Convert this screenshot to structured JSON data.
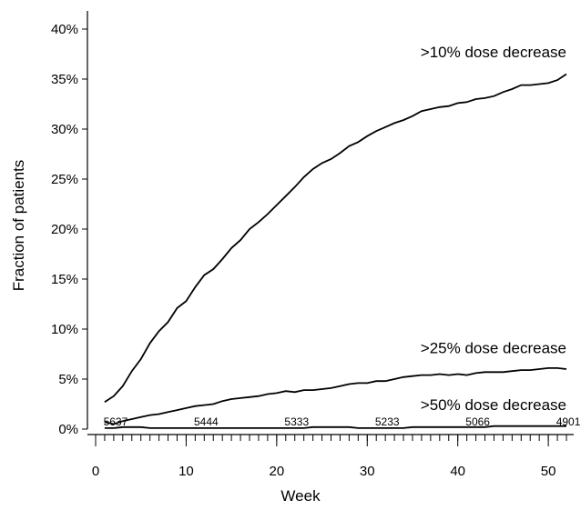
{
  "chart_data": {
    "type": "line",
    "xlabel": "Week",
    "ylabel": "Fraction of patients",
    "xlim": [
      0,
      52
    ],
    "ylim": [
      0,
      40
    ],
    "x_ticks": [
      0,
      10,
      20,
      30,
      40,
      50
    ],
    "y_ticks": [
      {
        "value": 0,
        "label": "0%"
      },
      {
        "value": 5,
        "label": "5%"
      },
      {
        "value": 10,
        "label": "10%"
      },
      {
        "value": 15,
        "label": "15%"
      },
      {
        "value": 20,
        "label": "20%"
      },
      {
        "value": 25,
        "label": "25%"
      },
      {
        "value": 30,
        "label": "30%"
      },
      {
        "value": 35,
        "label": "35%"
      },
      {
        "value": 40,
        "label": "40%"
      }
    ],
    "x": [
      1,
      2,
      3,
      4,
      5,
      6,
      7,
      8,
      9,
      10,
      11,
      12,
      13,
      14,
      15,
      16,
      17,
      18,
      19,
      20,
      21,
      22,
      23,
      24,
      25,
      26,
      27,
      28,
      29,
      30,
      31,
      32,
      33,
      34,
      35,
      36,
      37,
      38,
      39,
      40,
      41,
      42,
      43,
      44,
      45,
      46,
      47,
      48,
      49,
      50,
      51,
      52
    ],
    "series": [
      {
        "name": ">10% dose decrease",
        "values": [
          2.7,
          3.3,
          4.3,
          5.8,
          7.0,
          8.6,
          9.8,
          10.7,
          12.1,
          12.8,
          14.2,
          15.4,
          16.0,
          17.0,
          18.1,
          18.9,
          20.0,
          20.7,
          21.5,
          22.4,
          23.3,
          24.2,
          25.2,
          26.0,
          26.6,
          27.0,
          27.6,
          28.3,
          28.7,
          29.3,
          29.8,
          30.2,
          30.6,
          30.9,
          31.3,
          31.8,
          32.0,
          32.2,
          32.3,
          32.6,
          32.7,
          33.0,
          33.1,
          33.3,
          33.7,
          34.0,
          34.4,
          34.4,
          34.5,
          34.6,
          34.9,
          35.5
        ]
      },
      {
        "name": ">25% dose decrease",
        "values": [
          0.7,
          0.5,
          0.8,
          1.0,
          1.2,
          1.4,
          1.5,
          1.7,
          1.9,
          2.1,
          2.3,
          2.4,
          2.5,
          2.8,
          3.0,
          3.1,
          3.2,
          3.3,
          3.5,
          3.6,
          3.8,
          3.7,
          3.9,
          3.9,
          4.0,
          4.1,
          4.3,
          4.5,
          4.6,
          4.6,
          4.8,
          4.8,
          5.0,
          5.2,
          5.3,
          5.4,
          5.4,
          5.5,
          5.4,
          5.5,
          5.4,
          5.6,
          5.7,
          5.7,
          5.7,
          5.8,
          5.9,
          5.9,
          6.0,
          6.1,
          6.1,
          6.0
        ]
      },
      {
        "name": ">50% dose decrease",
        "values": [
          0.1,
          0.1,
          0.2,
          0.2,
          0.2,
          0.1,
          0.1,
          0.1,
          0.1,
          0.1,
          0.1,
          0.1,
          0.1,
          0.1,
          0.1,
          0.1,
          0.1,
          0.1,
          0.1,
          0.1,
          0.1,
          0.1,
          0.1,
          0.2,
          0.2,
          0.2,
          0.2,
          0.2,
          0.1,
          0.1,
          0.1,
          0.1,
          0.1,
          0.1,
          0.2,
          0.2,
          0.2,
          0.2,
          0.2,
          0.2,
          0.2,
          0.2,
          0.2,
          0.3,
          0.3,
          0.3,
          0.3,
          0.3,
          0.3,
          0.3,
          0.3,
          0.3
        ]
      }
    ],
    "series_labels": [
      {
        "text": ">10% dose decrease",
        "x": 52,
        "y": 37.2,
        "anchor": "end"
      },
      {
        "text": ">25% dose decrease",
        "x": 52,
        "y": 7.6,
        "anchor": "end"
      },
      {
        "text": ">50% dose decrease",
        "x": 52,
        "y": 1.9,
        "anchor": "end"
      }
    ],
    "patients_at_risk": [
      {
        "week": 1,
        "count": "5637"
      },
      {
        "week": 11,
        "count": "5444"
      },
      {
        "week": 21,
        "count": "5333"
      },
      {
        "week": 31,
        "count": "5233"
      },
      {
        "week": 41,
        "count": "5066"
      },
      {
        "week": 51,
        "count": "4901"
      }
    ],
    "minor_tick_every": 1,
    "grid": false,
    "colors": {
      "line": "#000000",
      "background": "#ffffff"
    }
  }
}
